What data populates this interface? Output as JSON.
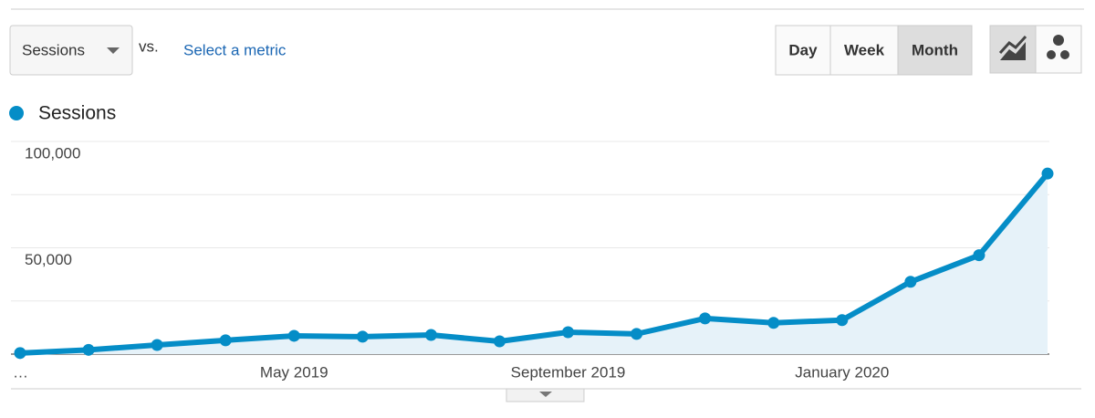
{
  "controls": {
    "metric": "Sessions",
    "vs": "vs.",
    "compare": "Select a metric",
    "periods": [
      "Day",
      "Week",
      "Month"
    ],
    "active_period": "Month"
  },
  "chart_data": {
    "type": "line",
    "categories": [
      "…",
      null,
      null,
      null,
      "May 2019",
      null,
      null,
      null,
      "September 2019",
      null,
      null,
      null,
      "January 2020",
      null,
      null,
      null
    ],
    "series": [
      {
        "name": "Sessions",
        "color": "#058dc7",
        "values": [
          500,
          2000,
          4300,
          6500,
          8600,
          8200,
          9000,
          6000,
          10300,
          9500,
          16800,
          14700,
          16000,
          34000,
          46500,
          84900
        ]
      }
    ],
    "ylim": [
      0,
      100000
    ],
    "yticks": [
      {
        "value": 50000,
        "label": "50,000"
      },
      {
        "value": 100000,
        "label": "100,000"
      }
    ],
    "ygrid": [
      25000,
      75000
    ],
    "area_fill": "#e6f2f9"
  }
}
